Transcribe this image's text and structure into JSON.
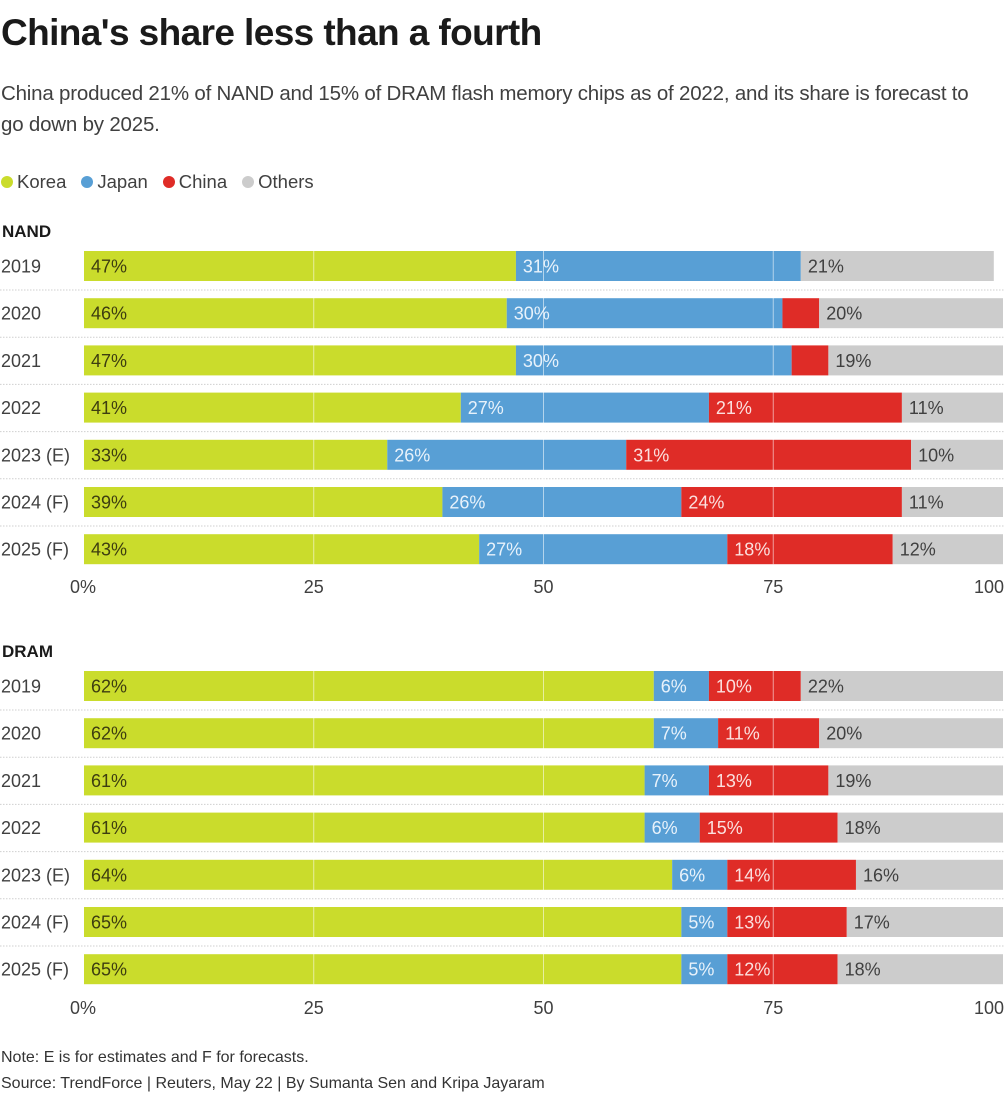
{
  "header": {
    "title": "China's share less than a fourth",
    "subtitle": "China produced 21% of NAND and 15% of DRAM flash memory chips as of 2022, and its share is forecast to go down by 2025."
  },
  "legend": [
    {
      "label": "Korea",
      "color": "#cadc2c"
    },
    {
      "label": "Japan",
      "color": "#589fd5"
    },
    {
      "label": "China",
      "color": "#df2c27"
    },
    {
      "label": "Others",
      "color": "#cccccc"
    }
  ],
  "footer": {
    "note": "Note: E is for estimates and F for forecasts.",
    "source": "Source: TrendForce | Reuters, May 22 | By Sumanta Sen and Kripa Jayaram"
  },
  "chart_data": [
    {
      "type": "bar",
      "orientation": "horizontal",
      "stacked": true,
      "title": "NAND",
      "categories": [
        "2019",
        "2020",
        "2021",
        "2022",
        "2023 (E)",
        "2024 (F)",
        "2025 (F)"
      ],
      "series": [
        {
          "name": "Korea",
          "color": "#cadc2c",
          "values": [
            47,
            46,
            47,
            41,
            33,
            39,
            43
          ],
          "labels": [
            "47%",
            "46%",
            "47%",
            "41%",
            "33%",
            "39%",
            "43%"
          ]
        },
        {
          "name": "Japan",
          "color": "#589fd5",
          "values": [
            31,
            30,
            30,
            27,
            26,
            26,
            27
          ],
          "labels": [
            "31%",
            "30%",
            "30%",
            "27%",
            "26%",
            "26%",
            "27%"
          ]
        },
        {
          "name": "China",
          "color": "#df2c27",
          "values": [
            0,
            4,
            4,
            21,
            31,
            24,
            18
          ],
          "labels": [
            "",
            "",
            "",
            "21%",
            "31%",
            "24%",
            "18%"
          ]
        },
        {
          "name": "Others",
          "color": "#cccccc",
          "values": [
            21,
            20,
            19,
            11,
            10,
            11,
            12
          ],
          "labels": [
            "21%",
            "20%",
            "19%",
            "11%",
            "10%",
            "11%",
            "12%"
          ]
        }
      ],
      "xlim": [
        0,
        100
      ],
      "xticks": [
        0,
        25,
        50,
        75,
        100
      ],
      "xtick_labels": [
        "0%",
        "25",
        "50",
        "75",
        "100"
      ],
      "grid": true
    },
    {
      "type": "bar",
      "orientation": "horizontal",
      "stacked": true,
      "title": "DRAM",
      "categories": [
        "2019",
        "2020",
        "2021",
        "2022",
        "2023 (E)",
        "2024 (F)",
        "2025 (F)"
      ],
      "series": [
        {
          "name": "Korea",
          "color": "#cadc2c",
          "values": [
            62,
            62,
            61,
            61,
            64,
            65,
            65
          ],
          "labels": [
            "62%",
            "62%",
            "61%",
            "61%",
            "64%",
            "65%",
            "65%"
          ]
        },
        {
          "name": "Japan",
          "color": "#589fd5",
          "values": [
            6,
            7,
            7,
            6,
            6,
            5,
            5
          ],
          "labels": [
            "6%",
            "7%",
            "7%",
            "6%",
            "6%",
            "5%",
            "5%"
          ]
        },
        {
          "name": "China",
          "color": "#df2c27",
          "values": [
            10,
            11,
            13,
            15,
            14,
            13,
            12
          ],
          "labels": [
            "10%",
            "11%",
            "13%",
            "15%",
            "14%",
            "13%",
            "12%"
          ]
        },
        {
          "name": "Others",
          "color": "#cccccc",
          "values": [
            22,
            20,
            19,
            18,
            16,
            17,
            18
          ],
          "labels": [
            "22%",
            "20%",
            "19%",
            "18%",
            "16%",
            "17%",
            "18%"
          ]
        }
      ],
      "xlim": [
        0,
        100
      ],
      "xticks": [
        0,
        25,
        50,
        75,
        100
      ],
      "xtick_labels": [
        "0%",
        "25",
        "50",
        "75",
        "100"
      ],
      "grid": true
    }
  ]
}
